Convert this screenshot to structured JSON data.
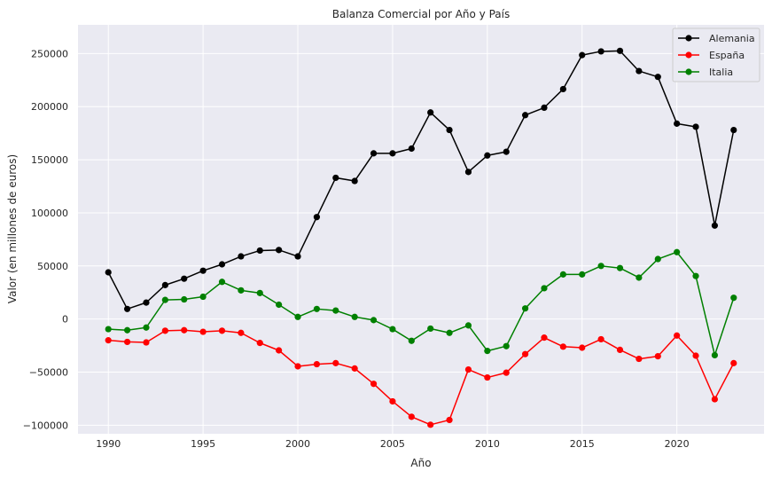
{
  "chart_data": {
    "type": "line",
    "title": "Balanza Comercial por Año y País",
    "xlabel": "Año",
    "ylabel": "Valor (en millones de euros)",
    "xlim": [
      1988.4,
      2024.6
    ],
    "ylim": [
      -108000,
      277000
    ],
    "x_ticks": [
      1990,
      1995,
      2000,
      2005,
      2010,
      2015,
      2020
    ],
    "y_ticks": [
      -100000,
      -50000,
      0,
      50000,
      100000,
      150000,
      200000,
      250000
    ],
    "grid": true,
    "legend_position": "top-right",
    "x": [
      1990,
      1991,
      1992,
      1993,
      1994,
      1995,
      1996,
      1997,
      1998,
      1999,
      2000,
      2001,
      2002,
      2003,
      2004,
      2005,
      2006,
      2007,
      2008,
      2009,
      2010,
      2011,
      2012,
      2013,
      2014,
      2015,
      2016,
      2017,
      2018,
      2019,
      2020,
      2021,
      2022,
      2023
    ],
    "series": [
      {
        "name": "Alemania",
        "color": "#000000",
        "values": [
          44000,
          9500,
          15500,
          32000,
          38000,
          45500,
          51500,
          59000,
          64500,
          65000,
          59000,
          96000,
          133000,
          130000,
          156000,
          156000,
          160500,
          194500,
          178000,
          138500,
          154000,
          157500,
          192000,
          199000,
          216500,
          248500,
          252000,
          252500,
          233500,
          228000,
          184000,
          181000,
          88000,
          178000
        ]
      },
      {
        "name": "España",
        "color": "#ff0000",
        "values": [
          -20000,
          -21500,
          -22000,
          -11000,
          -10500,
          -12000,
          -11000,
          -13000,
          -22500,
          -29500,
          -44500,
          -42500,
          -41500,
          -46500,
          -61000,
          -77500,
          -92000,
          -99500,
          -95000,
          -47500,
          -55000,
          -50500,
          -33000,
          -17500,
          -26000,
          -27000,
          -19000,
          -29000,
          -37500,
          -35000,
          -15500,
          -34500,
          -75500,
          -41500
        ]
      },
      {
        "name": "Italia",
        "color": "#008000",
        "values": [
          -9500,
          -10500,
          -8000,
          18000,
          18500,
          21000,
          35000,
          27000,
          24500,
          13500,
          2000,
          9500,
          8000,
          2000,
          -1000,
          -9500,
          -20500,
          -9000,
          -13000,
          -6000,
          -30000,
          -25500,
          10000,
          29000,
          42000,
          42000,
          50000,
          48000,
          39000,
          56500,
          63000,
          40500,
          -34000,
          20000
        ]
      }
    ]
  }
}
